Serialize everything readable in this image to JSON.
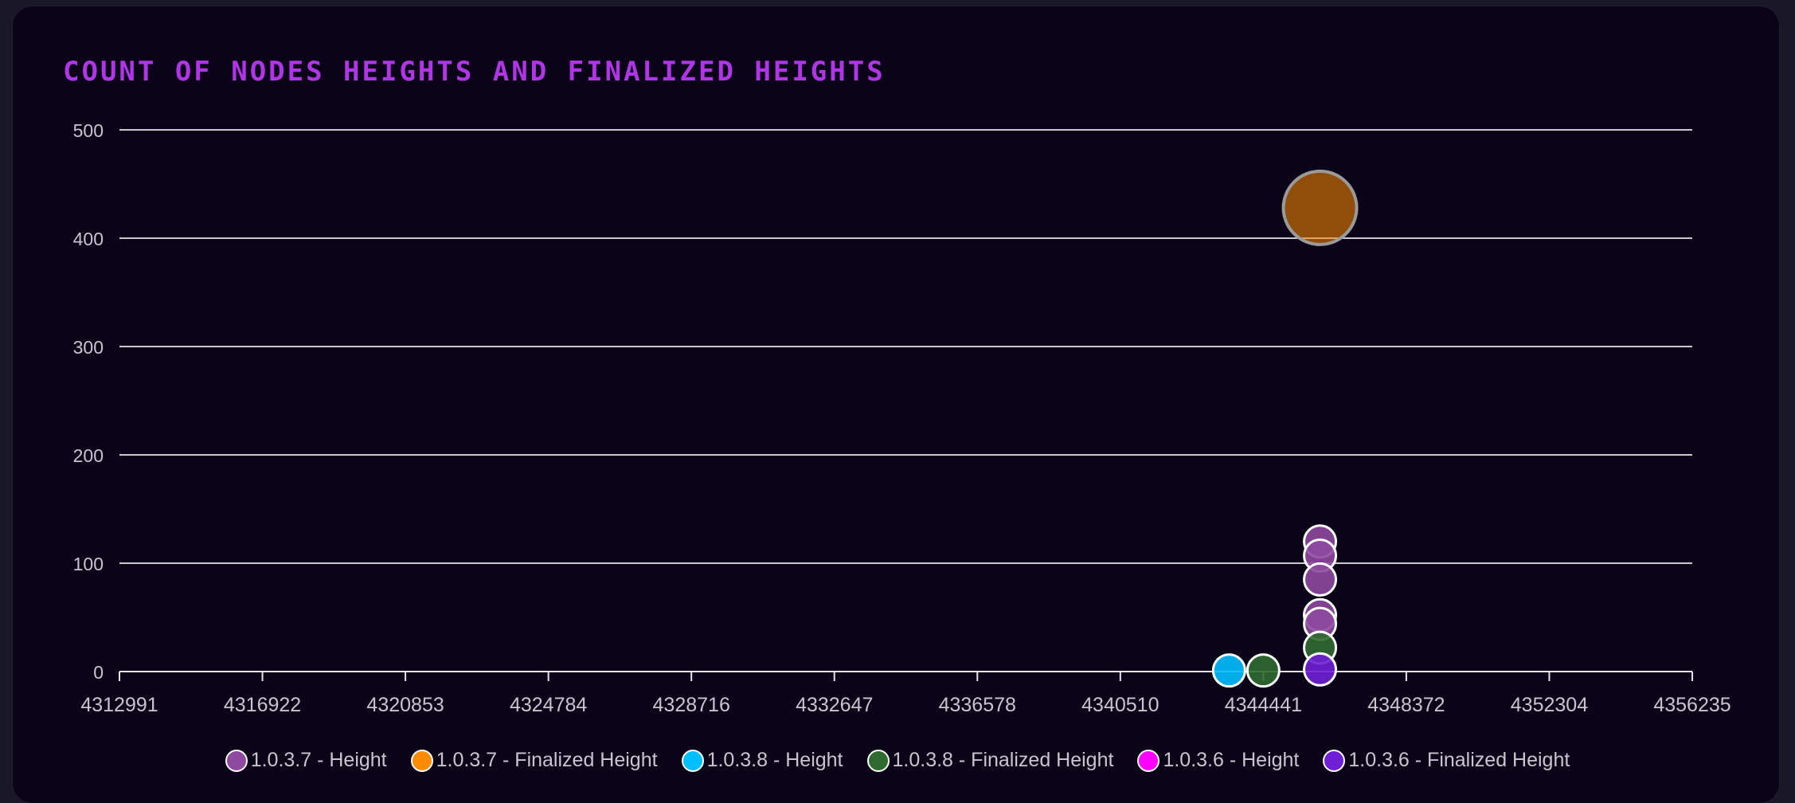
{
  "page": {
    "title": "COUNT OF NODES HEIGHTS AND FINALIZED HEIGHTS"
  },
  "chart_data": {
    "type": "scatter",
    "title": "COUNT OF NODES HEIGHTS AND FINALIZED HEIGHTS",
    "xlabel": "",
    "ylabel": "",
    "xlim": [
      4312991,
      4356235
    ],
    "ylim": [
      0,
      500
    ],
    "x_ticks": [
      "4312991",
      "4316922",
      "4320853",
      "4324784",
      "4328716",
      "4332647",
      "4336578",
      "4340510",
      "4344441",
      "4348372",
      "4352304",
      "4356235"
    ],
    "y_ticks": [
      "0",
      "100",
      "200",
      "300",
      "400",
      "500"
    ],
    "grid": true,
    "legend_position": "bottom",
    "series": [
      {
        "name": "1.0.3.7 - Height",
        "color": "#8e4a9e",
        "points": [
          {
            "x": 4346000,
            "y": 120
          },
          {
            "x": 4346000,
            "y": 107
          },
          {
            "x": 4346000,
            "y": 85
          },
          {
            "x": 4346000,
            "y": 52
          },
          {
            "x": 4346000,
            "y": 44
          }
        ]
      },
      {
        "name": "1.0.3.7 - Finalized Height",
        "color": "#ff8c00",
        "points": [
          {
            "x": 4346000,
            "y": 428,
            "size": 2.3
          }
        ]
      },
      {
        "name": "1.0.3.8 - Height",
        "color": "#00bfff",
        "points": [
          {
            "x": 4343500,
            "y": 1
          }
        ]
      },
      {
        "name": "1.0.3.8 - Finalized Height",
        "color": "#2f6b2f",
        "points": [
          {
            "x": 4344441,
            "y": 1
          },
          {
            "x": 4346000,
            "y": 22
          }
        ]
      },
      {
        "name": "1.0.3.6 - Height",
        "color": "#ff00ff",
        "points": []
      },
      {
        "name": "1.0.3.6 - Finalized Height",
        "color": "#6f1fd6",
        "points": [
          {
            "x": 4346000,
            "y": 2
          }
        ]
      }
    ]
  }
}
